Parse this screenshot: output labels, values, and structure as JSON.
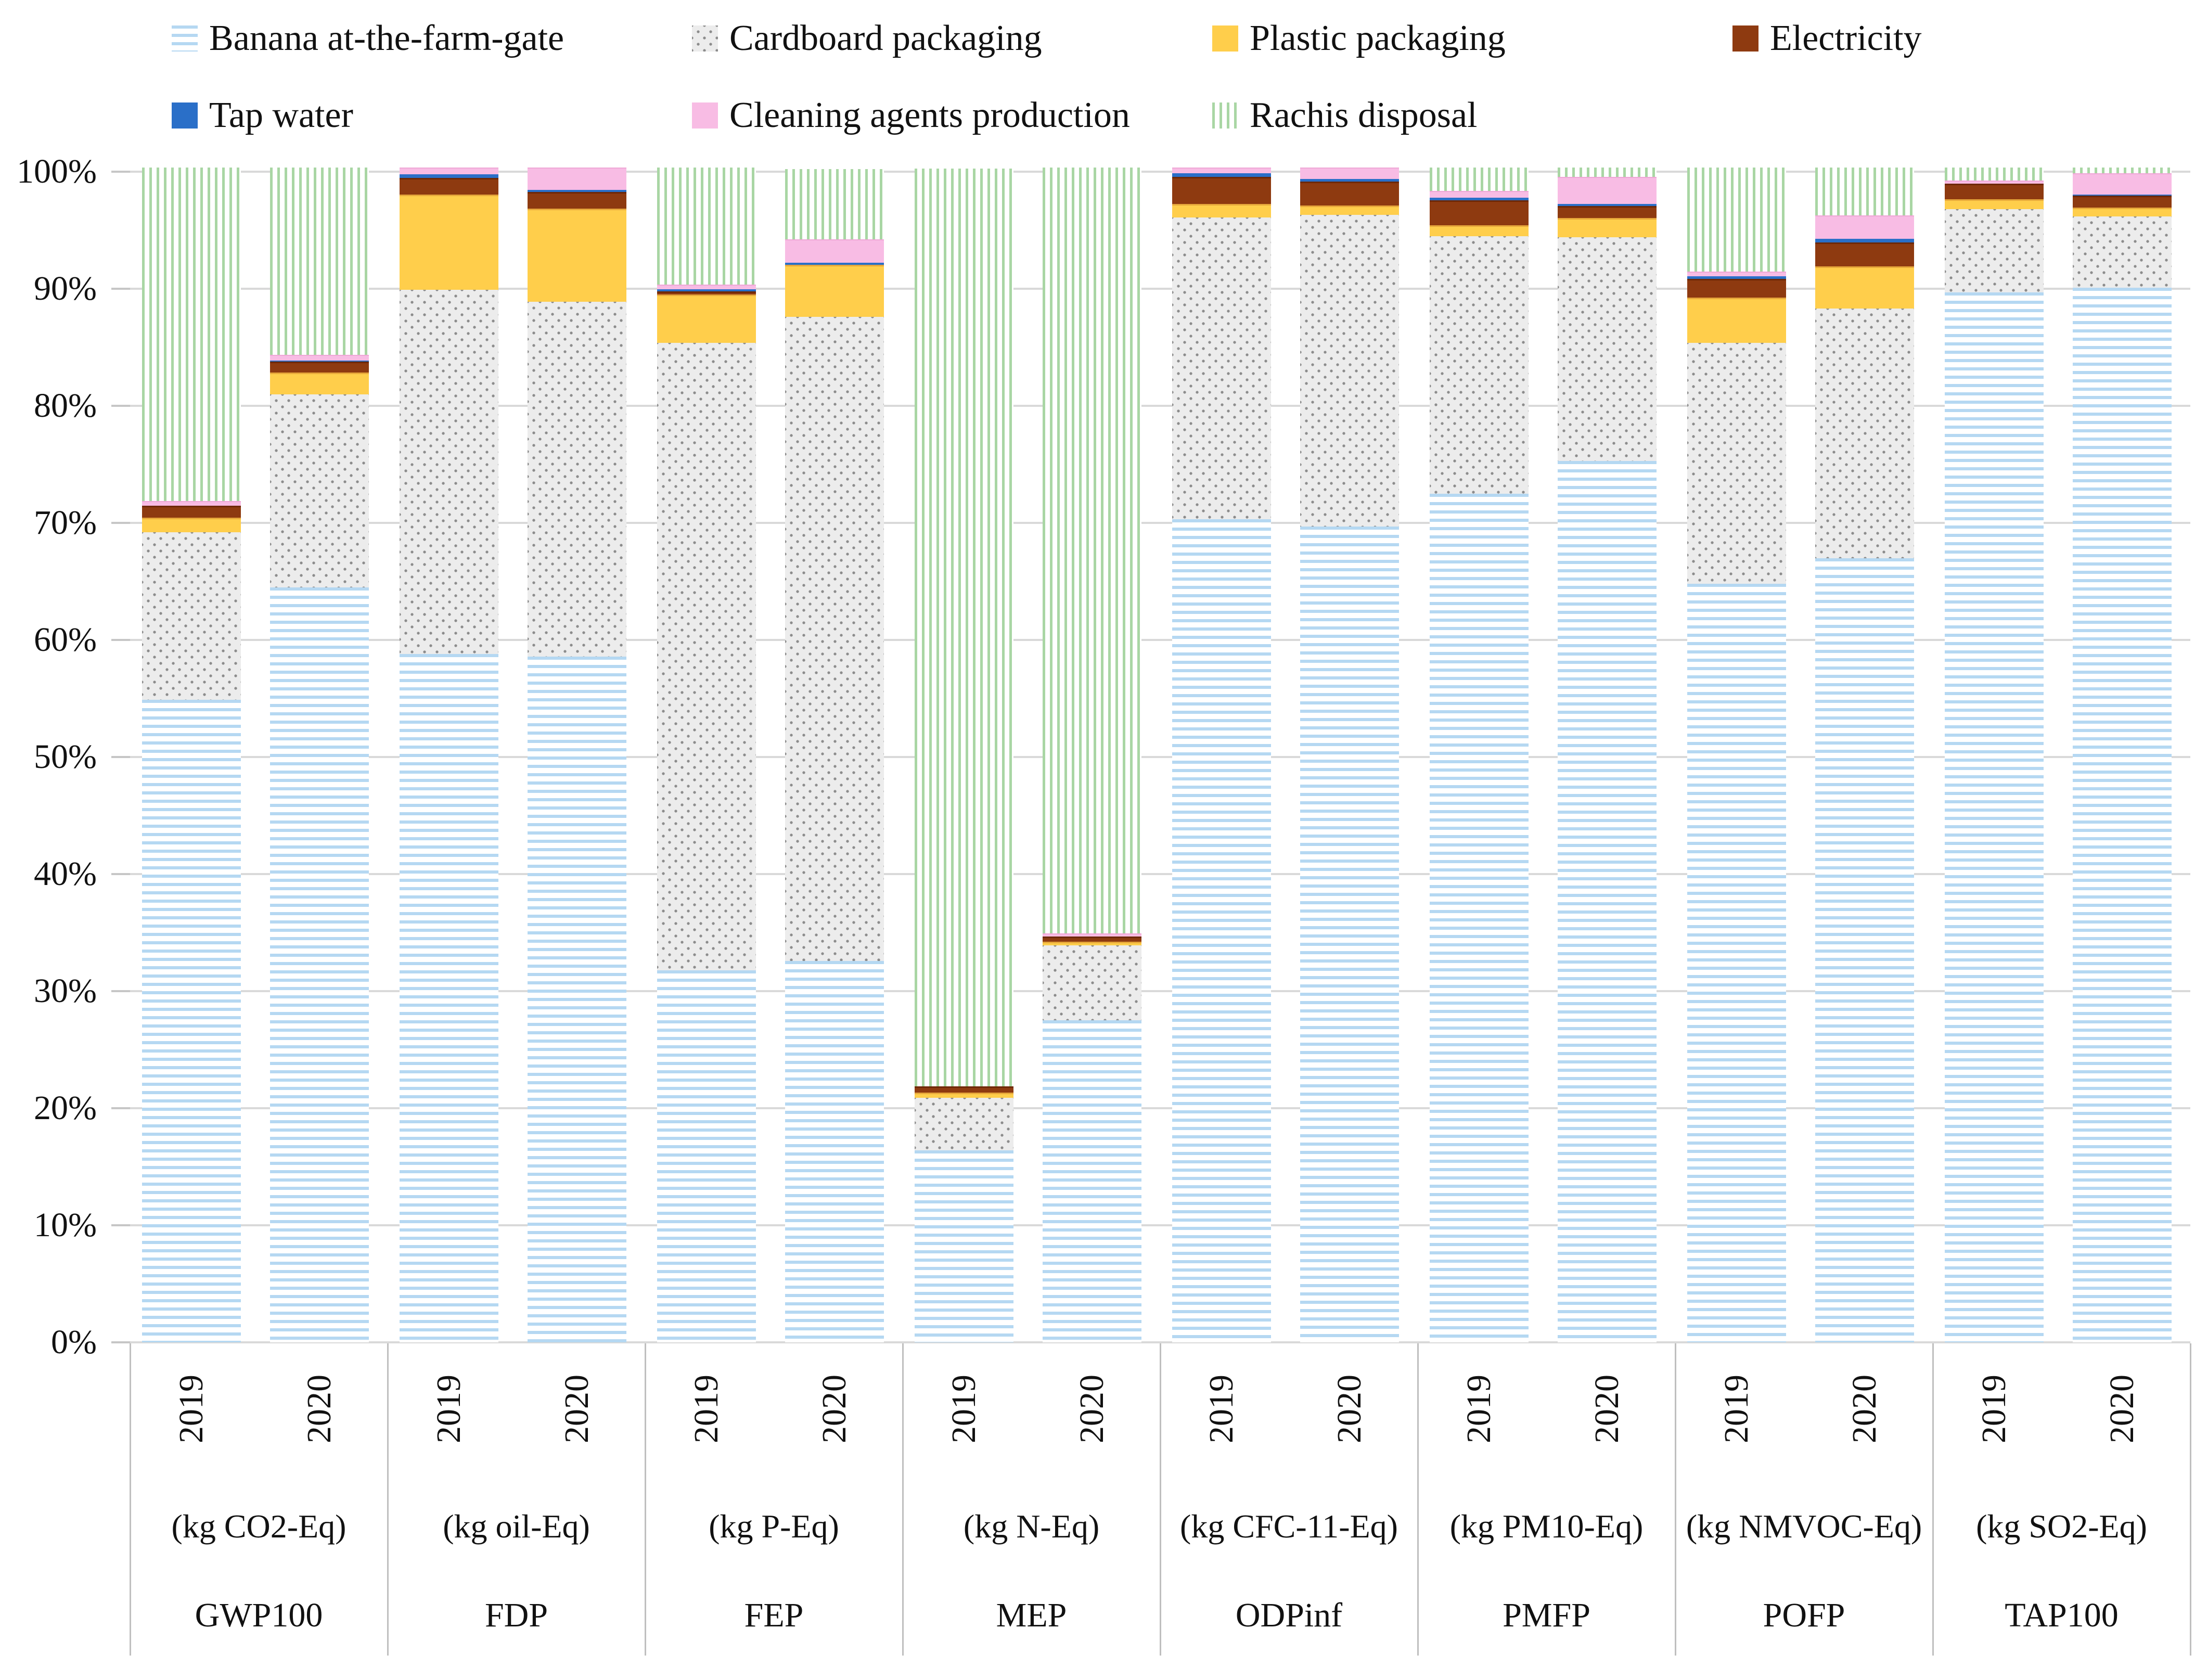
{
  "chart_data": {
    "type": "bar",
    "subtype": "stacked-100pct",
    "title": "",
    "ylabel": "",
    "xlabel": "",
    "ylim": [
      0,
      100
    ],
    "grid": "horizontal",
    "legend_position": "top",
    "y_axis_ticks": [
      "0%",
      "10%",
      "20%",
      "30%",
      "40%",
      "50%",
      "60%",
      "70%",
      "80%",
      "90%",
      "100%"
    ],
    "series": [
      {
        "id": "banana",
        "name": "Banana at-the-farm-gate",
        "fill": "pattern-hstripes",
        "color": "#B5D8F2"
      },
      {
        "id": "cardboard",
        "name": "Cardboard packaging",
        "fill": "pattern-dots",
        "color": "#ECECEC"
      },
      {
        "id": "plastic",
        "name": "Plastic packaging",
        "fill": "solid",
        "color": "#FFCE4B"
      },
      {
        "id": "electricity",
        "name": "Electricity",
        "fill": "solid",
        "color": "#8E3A10"
      },
      {
        "id": "tap",
        "name": "Tap water",
        "fill": "solid",
        "color": "#2A6FC8"
      },
      {
        "id": "cleaning",
        "name": "Cleaning agents production",
        "fill": "solid",
        "color": "#F8BCE4"
      },
      {
        "id": "rachis",
        "name": "Rachis disposal",
        "fill": "pattern-vstripes",
        "color": "#A9D6A4"
      }
    ],
    "legend_rows": [
      [
        0,
        1,
        2,
        3
      ],
      [
        4,
        5,
        6
      ]
    ],
    "groups": [
      {
        "code": "GWP100",
        "unit": "(kg CO2-Eq)",
        "bars": [
          {
            "year": "2019",
            "values": [
              54.9,
              14.3,
              1.1,
              0.9,
              0.0,
              0.3,
              28.5
            ]
          },
          {
            "year": "2020",
            "values": [
              64.5,
              16.5,
              1.7,
              0.8,
              0.1,
              0.4,
              16.0
            ]
          }
        ]
      },
      {
        "code": "FDP",
        "unit": "(kg oil-Eq)",
        "bars": [
          {
            "year": "2019",
            "values": [
              58.8,
              31.1,
              8.0,
              1.3,
              0.3,
              0.5,
              0.0
            ]
          },
          {
            "year": "2020",
            "values": [
              58.6,
              30.3,
              7.8,
              1.3,
              0.2,
              1.8,
              0.0
            ]
          }
        ]
      },
      {
        "code": "FEP",
        "unit": "(kg P-Eq)",
        "bars": [
          {
            "year": "2019",
            "values": [
              31.8,
              53.6,
              4.0,
              0.1,
              0.2,
              0.3,
              10.0
            ]
          },
          {
            "year": "2020",
            "values": [
              32.6,
              55.0,
              4.3,
              0.0,
              0.2,
              1.9,
              6.0
            ]
          }
        ]
      },
      {
        "code": "MEP",
        "unit": "(kg N-Eq)",
        "bars": [
          {
            "year": "2019",
            "values": [
              16.4,
              4.5,
              0.3,
              0.4,
              0.0,
              0.0,
              78.4
            ]
          },
          {
            "year": "2020",
            "values": [
              27.5,
              6.4,
              0.2,
              0.3,
              0.0,
              0.2,
              65.4
            ]
          }
        ]
      },
      {
        "code": "ODPinf",
        "unit": "(kg CFC-11-Eq)",
        "bars": [
          {
            "year": "2019",
            "values": [
              70.3,
              25.8,
              1.0,
              2.2,
              0.3,
              0.4,
              0.0
            ]
          },
          {
            "year": "2020",
            "values": [
              69.7,
              26.6,
              0.7,
              1.9,
              0.2,
              0.9,
              0.0
            ]
          }
        ]
      },
      {
        "code": "PMFP",
        "unit": "(kg PM10-Eq)",
        "bars": [
          {
            "year": "2019",
            "values": [
              72.5,
              22.0,
              0.8,
              2.0,
              0.2,
              0.5,
              2.0
            ]
          },
          {
            "year": "2020",
            "values": [
              75.3,
              19.1,
              1.5,
              0.9,
              0.2,
              2.2,
              0.8
            ]
          }
        ]
      },
      {
        "code": "POFP",
        "unit": "(kg NMVOC-Eq)",
        "bars": [
          {
            "year": "2019",
            "values": [
              64.8,
              20.6,
              3.7,
              1.5,
              0.2,
              0.3,
              8.9
            ]
          },
          {
            "year": "2020",
            "values": [
              67.0,
              21.3,
              3.5,
              1.9,
              0.3,
              1.9,
              4.1
            ]
          }
        ]
      },
      {
        "code": "TAP100",
        "unit": "(kg SO2-Eq)",
        "bars": [
          {
            "year": "2019",
            "values": [
              89.7,
              7.1,
              0.7,
              1.2,
              0.0,
              0.2,
              1.1
            ]
          },
          {
            "year": "2020",
            "values": [
              90.1,
              6.1,
              0.6,
              0.9,
              0.1,
              1.7,
              0.5
            ]
          }
        ]
      }
    ],
    "colors": {
      "gridline": "#D9D9D9",
      "separator": "#BFBFBF",
      "cardboard_dot": "#8C8C8C",
      "text": "#111111"
    }
  },
  "layout_legend_note": "legend top-left, two rows"
}
